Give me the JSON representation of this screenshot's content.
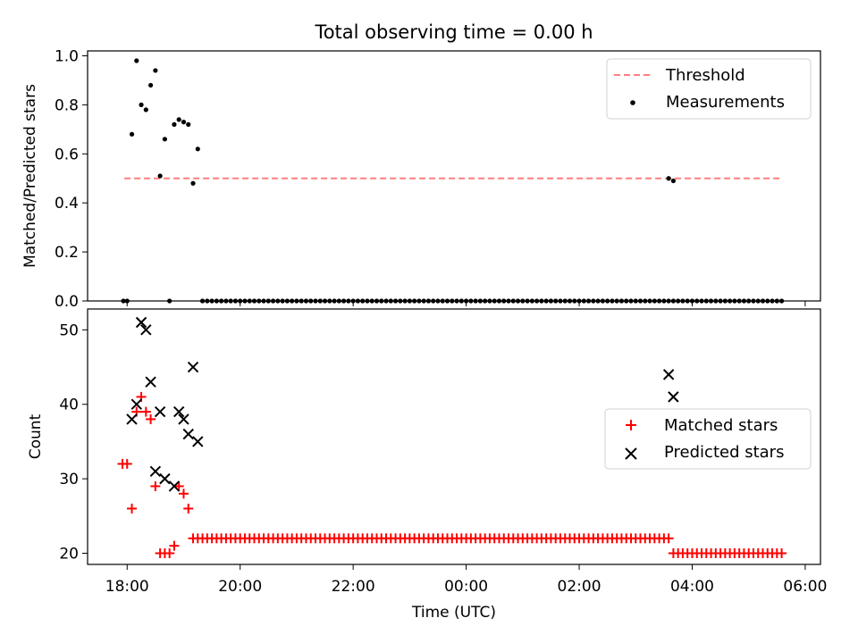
{
  "title": "Total observing time = 0.00 h",
  "chart_data": [
    {
      "type": "scatter",
      "xlabel": "",
      "ylabel": "Matched/Predicted stars",
      "ylim": [
        0,
        1.02
      ],
      "yticks": [
        "0.0",
        "0.2",
        "0.4",
        "0.6",
        "0.8",
        "1.0"
      ],
      "xlim_hours": [
        17.3,
        30.27
      ],
      "legend_position": "top-right",
      "threshold": {
        "name": "Threshold",
        "value": 0.5,
        "x_start": "17:57",
        "x_end": "05:35",
        "color": "#ff7f7f"
      },
      "series": [
        {
          "name": "Measurements",
          "color": "#000000",
          "points": [
            [
              "17:56",
              0.0
            ],
            [
              "18:00",
              0.0
            ],
            [
              "18:05",
              0.68
            ],
            [
              "18:10",
              0.98
            ],
            [
              "18:15",
              0.8
            ],
            [
              "18:20",
              0.78
            ],
            [
              "18:25",
              0.88
            ],
            [
              "18:30",
              0.94
            ],
            [
              "18:35",
              0.51
            ],
            [
              "18:40",
              0.66
            ],
            [
              "18:45",
              0.0
            ],
            [
              "18:50",
              0.72
            ],
            [
              "18:55",
              0.74
            ],
            [
              "19:00",
              0.73
            ],
            [
              "19:05",
              0.72
            ],
            [
              "19:10",
              0.48
            ],
            [
              "19:15",
              0.62
            ]
          ],
          "zero_run": {
            "start": "19:20",
            "end": "05:35",
            "step_min": 5,
            "value": 0.0
          },
          "extra_points": [
            [
              "03:35",
              0.5
            ],
            [
              "03:40",
              0.49
            ]
          ]
        }
      ]
    },
    {
      "type": "scatter",
      "xlabel": "Time (UTC)",
      "ylabel": "Count",
      "ylim": [
        18.5,
        52.8
      ],
      "yticks": [
        "20",
        "30",
        "40",
        "50"
      ],
      "xticks": [
        "18:00",
        "20:00",
        "22:00",
        "00:00",
        "02:00",
        "04:00",
        "06:00"
      ],
      "legend_position": "center-right",
      "series": [
        {
          "name": "Matched stars",
          "marker": "plus",
          "color": "#ff0000",
          "points": [
            [
              "17:55",
              32
            ],
            [
              "18:00",
              32
            ],
            [
              "18:05",
              26
            ],
            [
              "18:10",
              39
            ],
            [
              "18:15",
              41
            ],
            [
              "18:20",
              39
            ],
            [
              "18:25",
              38
            ],
            [
              "18:30",
              29
            ],
            [
              "18:35",
              20
            ],
            [
              "18:40",
              20
            ],
            [
              "18:45",
              20
            ],
            [
              "18:50",
              21
            ],
            [
              "18:55",
              29
            ],
            [
              "19:00",
              28
            ],
            [
              "19:05",
              26
            ]
          ],
          "runs": [
            {
              "start": "19:10",
              "end": "03:35",
              "step_min": 5,
              "value": 22
            },
            {
              "start": "03:40",
              "end": "05:35",
              "step_min": 5,
              "value": 20
            }
          ]
        },
        {
          "name": "Predicted stars",
          "marker": "x",
          "color": "#000000",
          "points": [
            [
              "18:05",
              38
            ],
            [
              "18:10",
              40
            ],
            [
              "18:15",
              51
            ],
            [
              "18:20",
              50
            ],
            [
              "18:25",
              43
            ],
            [
              "18:30",
              31
            ],
            [
              "18:35",
              39
            ],
            [
              "18:40",
              30
            ],
            [
              "18:50",
              29
            ],
            [
              "18:55",
              39
            ],
            [
              "19:00",
              38
            ],
            [
              "19:05",
              36
            ],
            [
              "19:10",
              45
            ],
            [
              "19:15",
              35
            ],
            [
              "03:35",
              44
            ],
            [
              "03:40",
              41
            ]
          ]
        }
      ]
    }
  ]
}
